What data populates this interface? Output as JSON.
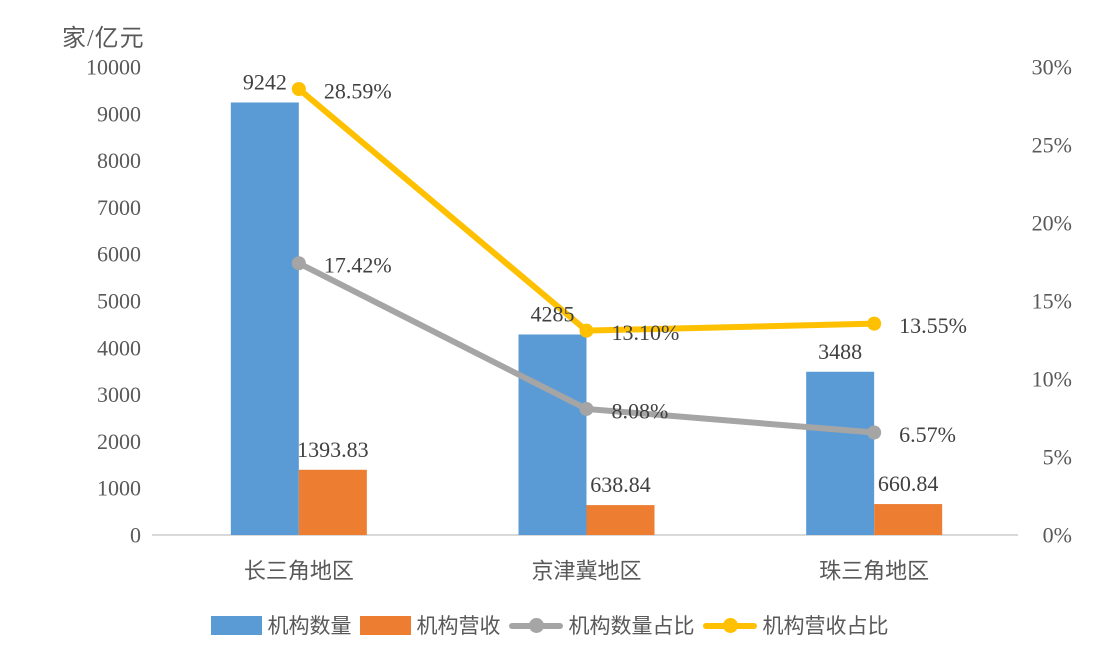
{
  "chart_data": {
    "type": "bar",
    "subtype": "combo-bar-line-dual-axis",
    "title": "",
    "grid": false,
    "legend_position": "bottom",
    "left_axis": {
      "title": "家/亿元",
      "min": 0,
      "max": 10000,
      "step": 1000,
      "ticks": [
        "0",
        "1000",
        "2000",
        "3000",
        "4000",
        "5000",
        "6000",
        "7000",
        "8000",
        "9000",
        "10000"
      ]
    },
    "right_axis": {
      "min": 0,
      "max": 30,
      "step": 5,
      "ticks": [
        "0%",
        "5%",
        "10%",
        "15%",
        "20%",
        "25%",
        "30%"
      ]
    },
    "categories": [
      "长三角地区",
      "京津冀地区",
      "珠三角地区"
    ],
    "bar_series": [
      {
        "id": "institution-count",
        "name": "机构数量",
        "color": "#5B9BD5",
        "values": [
          9242,
          4285,
          3488
        ],
        "labels": [
          "9242",
          "4285",
          "3488"
        ]
      },
      {
        "id": "institution-revenue",
        "name": "机构营收",
        "color": "#ED7D31",
        "values": [
          1393.83,
          638.84,
          660.84
        ],
        "labels": [
          "1393.83",
          "638.84",
          "660.84"
        ]
      }
    ],
    "line_series": [
      {
        "id": "institution-count-share",
        "name": "机构数量占比",
        "color": "#A5A5A5",
        "values": [
          17.42,
          8.08,
          6.57
        ],
        "labels": [
          "17.42%",
          "8.08%",
          "6.57%"
        ]
      },
      {
        "id": "institution-revenue-share",
        "name": "机构营收占比",
        "color": "#FFC000",
        "values": [
          28.59,
          13.1,
          13.55
        ],
        "labels": [
          "28.59%",
          "13.10%",
          "13.55%"
        ]
      }
    ],
    "legend": [
      "机构数量",
      "机构营收",
      "机构数量占比",
      "机构营收占比"
    ]
  },
  "colors": {
    "axis_line": "#D9D9D9",
    "tick_text": "#595959",
    "data_label_text": "#404040",
    "background": "#FFFFFF"
  }
}
